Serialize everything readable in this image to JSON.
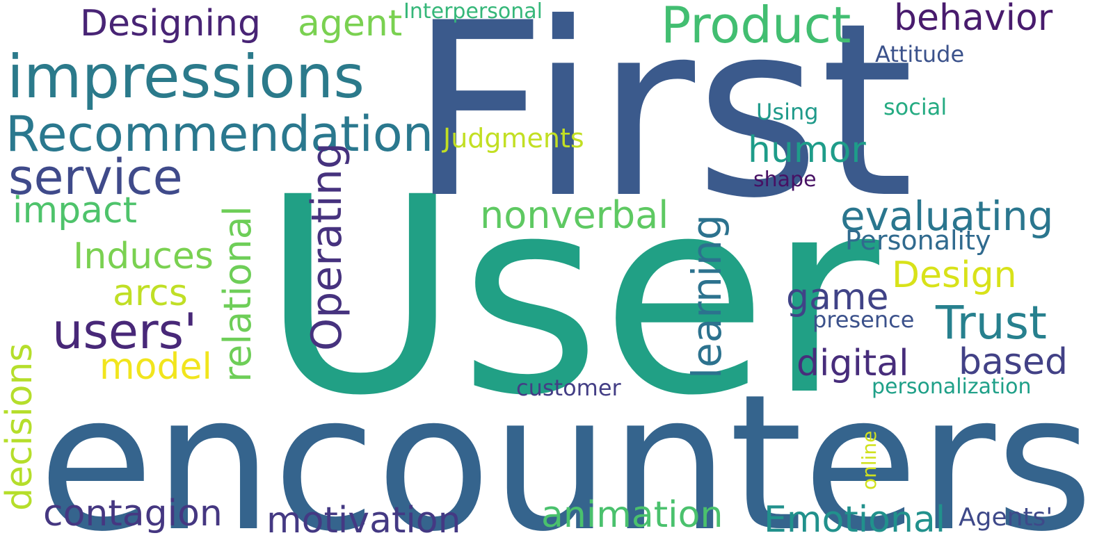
{
  "words": {
    "user": {
      "text": "User",
      "color": "#21a085"
    },
    "first": {
      "text": "First",
      "color": "#3b5a8c"
    },
    "encounters": {
      "text": "encounters",
      "color": "#35648d"
    },
    "impressions": {
      "text": "impressions",
      "color": "#2b7a8b"
    },
    "recommendation": {
      "text": "Recommendation",
      "color": "#2a788e"
    },
    "service": {
      "text": "service",
      "color": "#3f4a8a"
    },
    "product": {
      "text": "Product",
      "color": "#42be71"
    },
    "designing": {
      "text": "Designing",
      "color": "#482475"
    },
    "agent": {
      "text": "agent",
      "color": "#7ad151"
    },
    "interpersonal": {
      "text": "Interpersonal",
      "color": "#35b779"
    },
    "behavior": {
      "text": "behavior",
      "color": "#481b6d"
    },
    "attitude": {
      "text": "Attitude",
      "color": "#3b528b"
    },
    "using": {
      "text": "Using",
      "color": "#1f9a8a"
    },
    "social": {
      "text": "social",
      "color": "#25ab82"
    },
    "shape": {
      "text": "shape",
      "color": "#471164"
    },
    "judgments": {
      "text": "Judgments",
      "color": "#c2df23"
    },
    "humor": {
      "text": "humor",
      "color": "#1e9c89"
    },
    "evaluating": {
      "text": "evaluating",
      "color": "#2a768e"
    },
    "personality": {
      "text": "Personality",
      "color": "#306a8e"
    },
    "design": {
      "text": "Design",
      "color": "#d8e219"
    },
    "trust": {
      "text": "Trust",
      "color": "#27808e"
    },
    "game": {
      "text": "game",
      "color": "#404387"
    },
    "presence": {
      "text": "presence",
      "color": "#3b518b"
    },
    "digital": {
      "text": "digital",
      "color": "#472d7b"
    },
    "based": {
      "text": "based",
      "color": "#424186"
    },
    "personalization": {
      "text": "personalization",
      "color": "#1fa088"
    },
    "online": {
      "text": "online",
      "color": "#d0e11c"
    },
    "agents": {
      "text": "Agents'",
      "color": "#3e4989"
    },
    "emotional": {
      "text": "Emotional",
      "color": "#21918c"
    },
    "animation": {
      "text": "animation",
      "color": "#4ac16d"
    },
    "nonverbal": {
      "text": "nonverbal",
      "color": "#5ec962"
    },
    "learning": {
      "text": "learning",
      "color": "#2c728e"
    },
    "operating": {
      "text": "Operating",
      "color": "#46327e"
    },
    "relational": {
      "text": "relational",
      "color": "#6ece58"
    },
    "customer": {
      "text": "customer",
      "color": "#433e85"
    },
    "motivation": {
      "text": "motivation",
      "color": "#443983"
    },
    "contagion": {
      "text": "contagion",
      "color": "#453781"
    },
    "decisions": {
      "text": "decisions",
      "color": "#b5de2b"
    },
    "model": {
      "text": "model",
      "color": "#f1e51d"
    },
    "users": {
      "text": "users'",
      "color": "#482878"
    },
    "arcs": {
      "text": "arcs",
      "color": "#c0df25"
    },
    "induces": {
      "text": "Induces",
      "color": "#7ad151"
    },
    "impact": {
      "text": "impact",
      "color": "#4ec36b"
    }
  }
}
